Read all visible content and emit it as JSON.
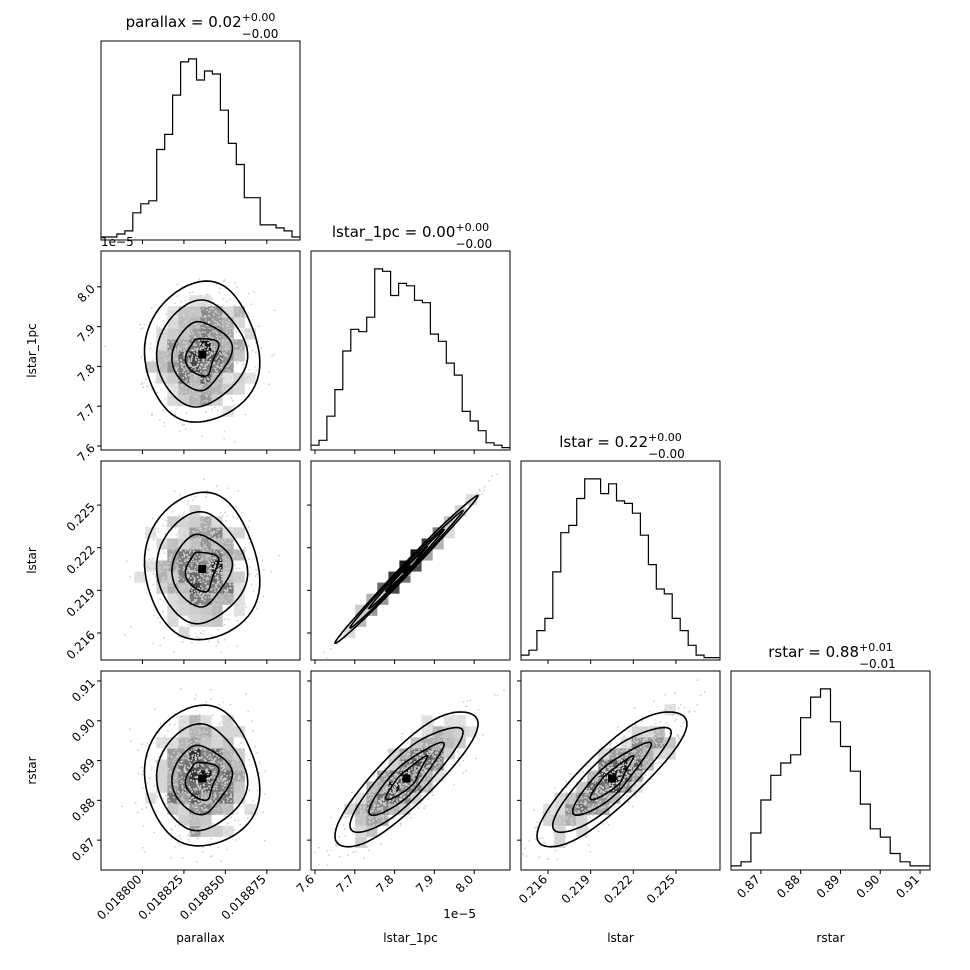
{
  "chart_data": {
    "type": "corner",
    "offset_text": "1e−5",
    "params": [
      {
        "name": "parallax",
        "label": "parallax",
        "title_name": "parallax",
        "title_value": "0.02",
        "title_plus": "+0.00",
        "title_minus": "−0.00",
        "range": [
          0.018775,
          0.018895
        ],
        "ticks": [
          0.0188,
          0.018825,
          0.01885,
          0.018875
        ],
        "tick_labels": [
          "0.018800",
          "0.018825",
          "0.018850",
          "0.018875"
        ],
        "hist": [
          1,
          1,
          2,
          3,
          9,
          12,
          13,
          30,
          35,
          48,
          59,
          60,
          53,
          56,
          55,
          43,
          32,
          25,
          14,
          14,
          5,
          5,
          4,
          3,
          1
        ]
      },
      {
        "name": "lstar_1pc",
        "label": "lstar_1pc",
        "title_name": "lstar_1pc",
        "title_value": "0.00",
        "title_plus": "+0.00",
        "title_minus": "−0.00",
        "range": [
          7.59,
          8.09
        ],
        "ticks": [
          7.6,
          7.7,
          7.8,
          7.9,
          8.0
        ],
        "tick_labels": [
          "7.6",
          "7.7",
          "7.8",
          "7.9",
          "8.0"
        ],
        "hist": [
          2,
          4,
          14,
          25,
          41,
          50,
          49,
          55,
          75,
          74,
          64,
          69,
          68,
          62,
          61,
          48,
          45,
          36,
          31,
          16,
          12,
          8,
          3,
          2,
          1
        ]
      },
      {
        "name": "lstar",
        "label": "lstar",
        "title_name": "lstar",
        "title_value": "0.22",
        "title_plus": "+0.00",
        "title_minus": "−0.00",
        "range": [
          0.2141,
          0.2281
        ],
        "ticks": [
          0.216,
          0.219,
          0.222,
          0.225
        ],
        "tick_labels": [
          "0.216",
          "0.219",
          "0.222",
          "0.225"
        ],
        "hist": [
          2,
          4,
          12,
          17,
          36,
          52,
          55,
          66,
          74,
          74,
          68,
          72,
          65,
          64,
          60,
          51,
          39,
          29,
          27,
          17,
          12,
          6,
          2,
          1,
          1
        ]
      },
      {
        "name": "rstar",
        "label": "rstar",
        "title_name": "rstar",
        "title_value": "0.88",
        "title_plus": "+0.01",
        "title_minus": "−0.01",
        "range": [
          0.8625,
          0.9125
        ],
        "ticks": [
          0.87,
          0.88,
          0.89,
          0.9,
          0.91
        ],
        "tick_labels": [
          "0.87",
          "0.88",
          "0.89",
          "0.90",
          "0.91"
        ],
        "hist": [
          1,
          2,
          9,
          17,
          23,
          26,
          28,
          37,
          42,
          44,
          36,
          30,
          24,
          16,
          10,
          8,
          4,
          2,
          1,
          1
        ]
      }
    ],
    "pairs": [
      {
        "x": "parallax",
        "y": "lstar_1pc",
        "mean": [
          0.018836,
          7.83
        ],
        "sd": [
          1.45e-05,
          0.075
        ],
        "rho": 0.05
      },
      {
        "x": "parallax",
        "y": "lstar",
        "mean": [
          0.018836,
          0.2205
        ],
        "sd": [
          1.45e-05,
          0.0022
        ],
        "rho": 0.0
      },
      {
        "x": "parallax",
        "y": "rstar",
        "mean": [
          0.018836,
          0.8855
        ],
        "sd": [
          1.45e-05,
          0.0075
        ],
        "rho": 0.0
      },
      {
        "x": "lstar_1pc",
        "y": "lstar",
        "mean": [
          7.83,
          0.2205
        ],
        "sd": [
          0.075,
          0.0022
        ],
        "rho": 0.995
      },
      {
        "x": "lstar_1pc",
        "y": "rstar",
        "mean": [
          7.83,
          0.8855
        ],
        "sd": [
          0.075,
          0.0075
        ],
        "rho": 0.85
      },
      {
        "x": "lstar",
        "y": "rstar",
        "mean": [
          0.2205,
          0.8855
        ],
        "sd": [
          0.0022,
          0.0075
        ],
        "rho": 0.85
      }
    ]
  }
}
